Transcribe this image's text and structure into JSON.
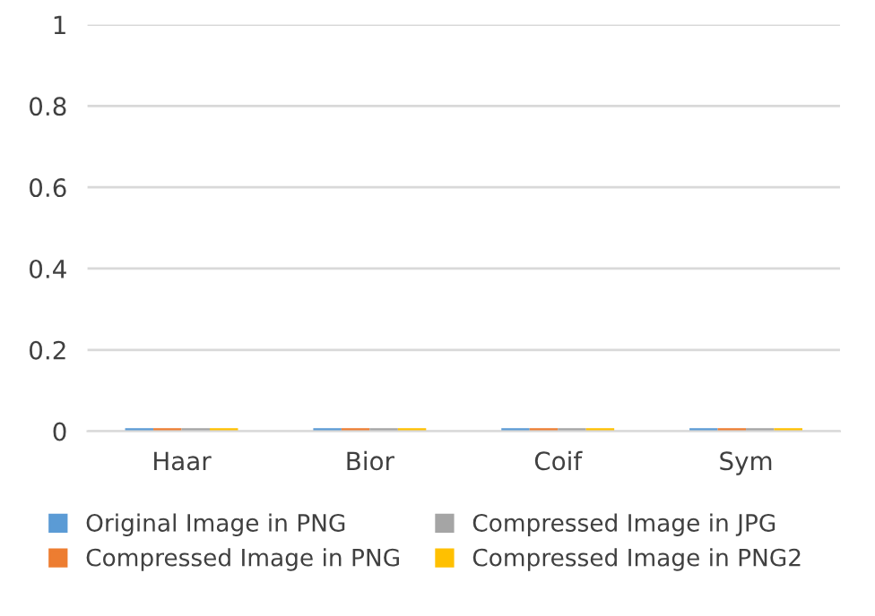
{
  "chart_data": {
    "type": "bar",
    "categories": [
      "Haar",
      "Bior",
      "Coif",
      "Sym"
    ],
    "series": [
      {
        "name": "Original Image in PNG",
        "color": "#5b9bd5",
        "values": [
          0,
          0,
          0,
          0
        ]
      },
      {
        "name": "Compressed Image in PNG",
        "color": "#ed7d31",
        "values": [
          0,
          0,
          0,
          0
        ]
      },
      {
        "name": "Compressed Image in JPG",
        "color": "#a5a5a5",
        "values": [
          0,
          0,
          0,
          0
        ]
      },
      {
        "name": "Compressed Image in PNG2",
        "color": "#ffc000",
        "values": [
          0,
          0,
          0,
          0
        ]
      }
    ],
    "ylim": [
      0,
      1
    ],
    "yticks": [
      0,
      0.2,
      0.4,
      0.6,
      0.8,
      1
    ],
    "grid": "y",
    "legend": "bottom"
  }
}
